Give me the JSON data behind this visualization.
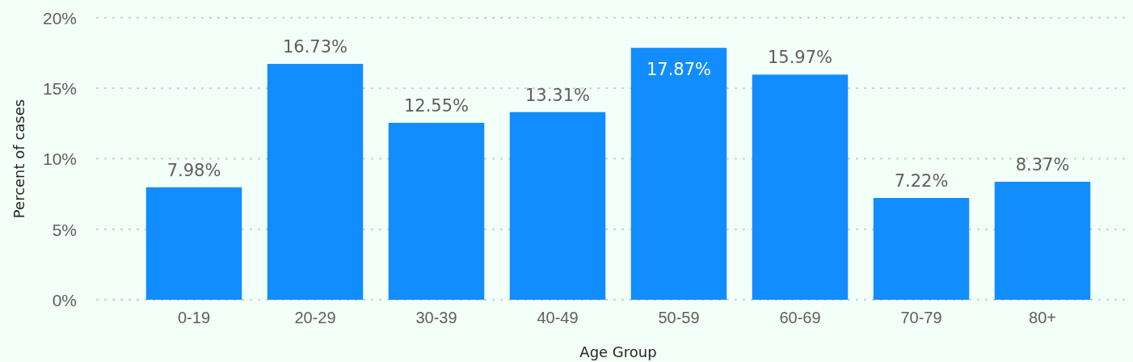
{
  "chart_data": {
    "type": "bar",
    "xlabel": "Age Group",
    "ylabel": "Percent of cases",
    "categories": [
      "0-19",
      "20-29",
      "30-39",
      "40-49",
      "50-59",
      "60-69",
      "70-79",
      "80+"
    ],
    "values": [
      7.98,
      16.73,
      12.55,
      13.31,
      17.87,
      15.97,
      7.22,
      8.37
    ],
    "value_labels": [
      "7.98%",
      "16.73%",
      "12.55%",
      "13.31%",
      "17.87%",
      "15.97%",
      "7.22%",
      "8.37%"
    ],
    "color": "#118dff",
    "ylim": [
      0,
      20
    ],
    "yticks": [
      {
        "value": 0,
        "label": "0%"
      },
      {
        "value": 5,
        "label": "5%"
      },
      {
        "value": 10,
        "label": "10%"
      },
      {
        "value": 15,
        "label": "15%"
      },
      {
        "value": 20,
        "label": "20%"
      }
    ],
    "grid": "y"
  }
}
